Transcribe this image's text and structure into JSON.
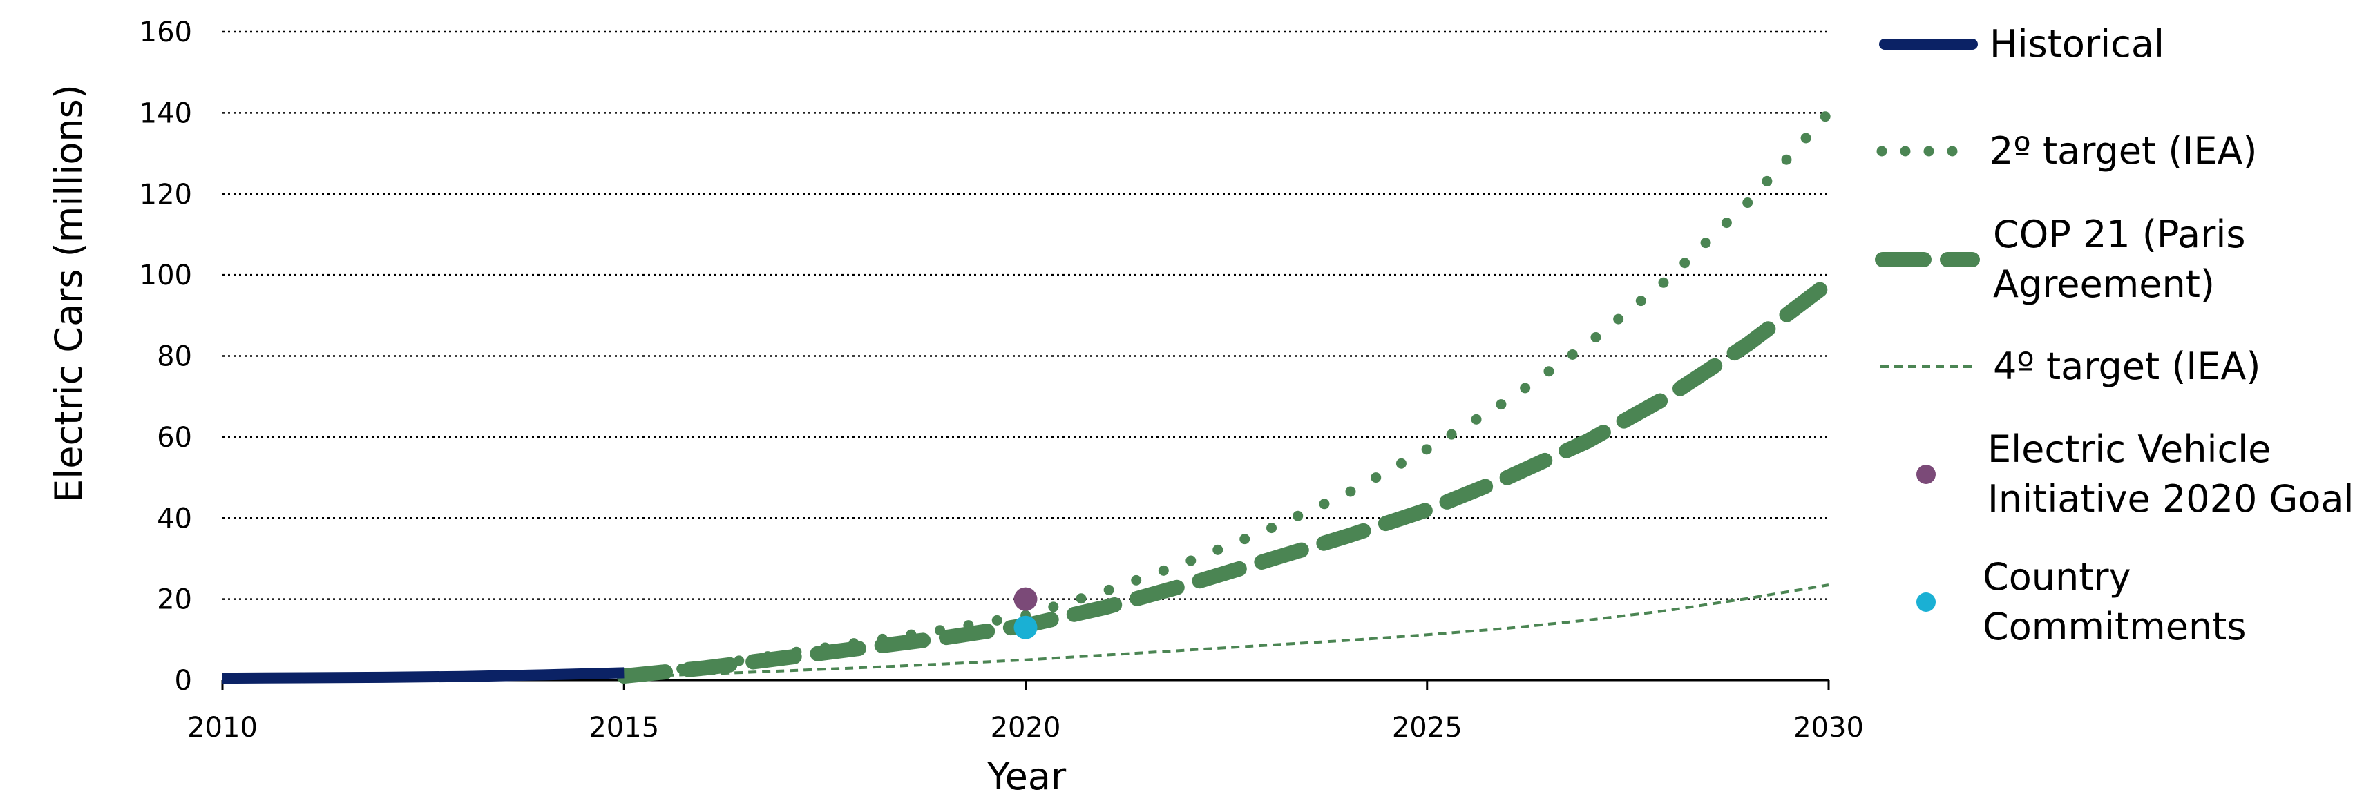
{
  "chart_data": {
    "type": "line",
    "title": "",
    "xlabel": "Year",
    "ylabel": "Electric Cars (millions)",
    "xlim": [
      2010,
      2030
    ],
    "ylim": [
      0,
      160
    ],
    "x_ticks": [
      "2010",
      "2015",
      "2020",
      "2025",
      "2030"
    ],
    "y_ticks": [
      "0",
      "20",
      "40",
      "60",
      "80",
      "100",
      "120",
      "140",
      "160"
    ],
    "grid": "horizontal-dotted",
    "legend_position": "right",
    "series": [
      {
        "name": "Historical",
        "style": "solid",
        "color": "#0b2265",
        "x": [
          2010,
          2011,
          2012,
          2013,
          2014,
          2015
        ],
        "y": [
          0.5,
          0.6,
          0.7,
          0.9,
          1.3,
          1.8
        ]
      },
      {
        "name": "2º target (IEA)",
        "style": "dotted",
        "color": "#4b8553",
        "x": [
          2015,
          2016,
          2017,
          2018,
          2019,
          2020,
          2021,
          2022,
          2023,
          2024,
          2025,
          2026,
          2027,
          2028,
          2029,
          2030
        ],
        "y": [
          1,
          3.5,
          6.5,
          9.5,
          12.5,
          16,
          22,
          29,
          37,
          46,
          57,
          69,
          83,
          99,
          118,
          140
        ]
      },
      {
        "name": "COP 21 (Paris Agreement)",
        "style": "dashed",
        "color": "#4b8553",
        "x": [
          2015,
          2016,
          2017,
          2018,
          2019,
          2020,
          2021,
          2022,
          2023,
          2024,
          2025,
          2026,
          2027,
          2028,
          2029,
          2030
        ],
        "y": [
          1,
          3,
          5.5,
          8,
          10.5,
          13.5,
          18,
          23.5,
          29.5,
          35.5,
          42,
          50,
          59,
          70,
          83,
          98
        ]
      },
      {
        "name": "4º target (IEA)",
        "style": "thin-dashed",
        "color": "#4b8553",
        "x": [
          2015,
          2016,
          2017,
          2018,
          2019,
          2020,
          2021,
          2022,
          2023,
          2024,
          2025,
          2026,
          2027,
          2028,
          2029,
          2030
        ],
        "y": [
          0.8,
          1.5,
          2.3,
          3.1,
          4,
          5,
          6.2,
          7.4,
          8.6,
          9.8,
          11.2,
          12.8,
          14.8,
          17.2,
          20.2,
          23.5
        ]
      }
    ],
    "points": [
      {
        "name": "Electric Vehicle Initiative 2020 Goal",
        "x": 2020,
        "y": 20,
        "color": "#7b4a78"
      },
      {
        "name": "Country Commitments",
        "x": 2020,
        "y": 13,
        "color": "#1ab0d4"
      }
    ],
    "legend": [
      {
        "lines": [
          "Historical"
        ],
        "style": "solid",
        "color": "#0b2265"
      },
      {
        "lines": [
          "2º target (IEA)"
        ],
        "style": "dotted",
        "color": "#4b8553"
      },
      {
        "lines": [
          "COP 21 (Paris",
          "Agreement)"
        ],
        "style": "dashed",
        "color": "#4b8553"
      },
      {
        "lines": [
          "4º target (IEA)"
        ],
        "style": "thin-dashed",
        "color": "#4b8553"
      },
      {
        "lines": [
          "Electric Vehicle",
          "Initiative 2020 Goal"
        ],
        "style": "marker",
        "color": "#7b4a78"
      },
      {
        "lines": [
          "Country",
          "Commitments"
        ],
        "style": "marker",
        "color": "#1ab0d4"
      }
    ]
  }
}
